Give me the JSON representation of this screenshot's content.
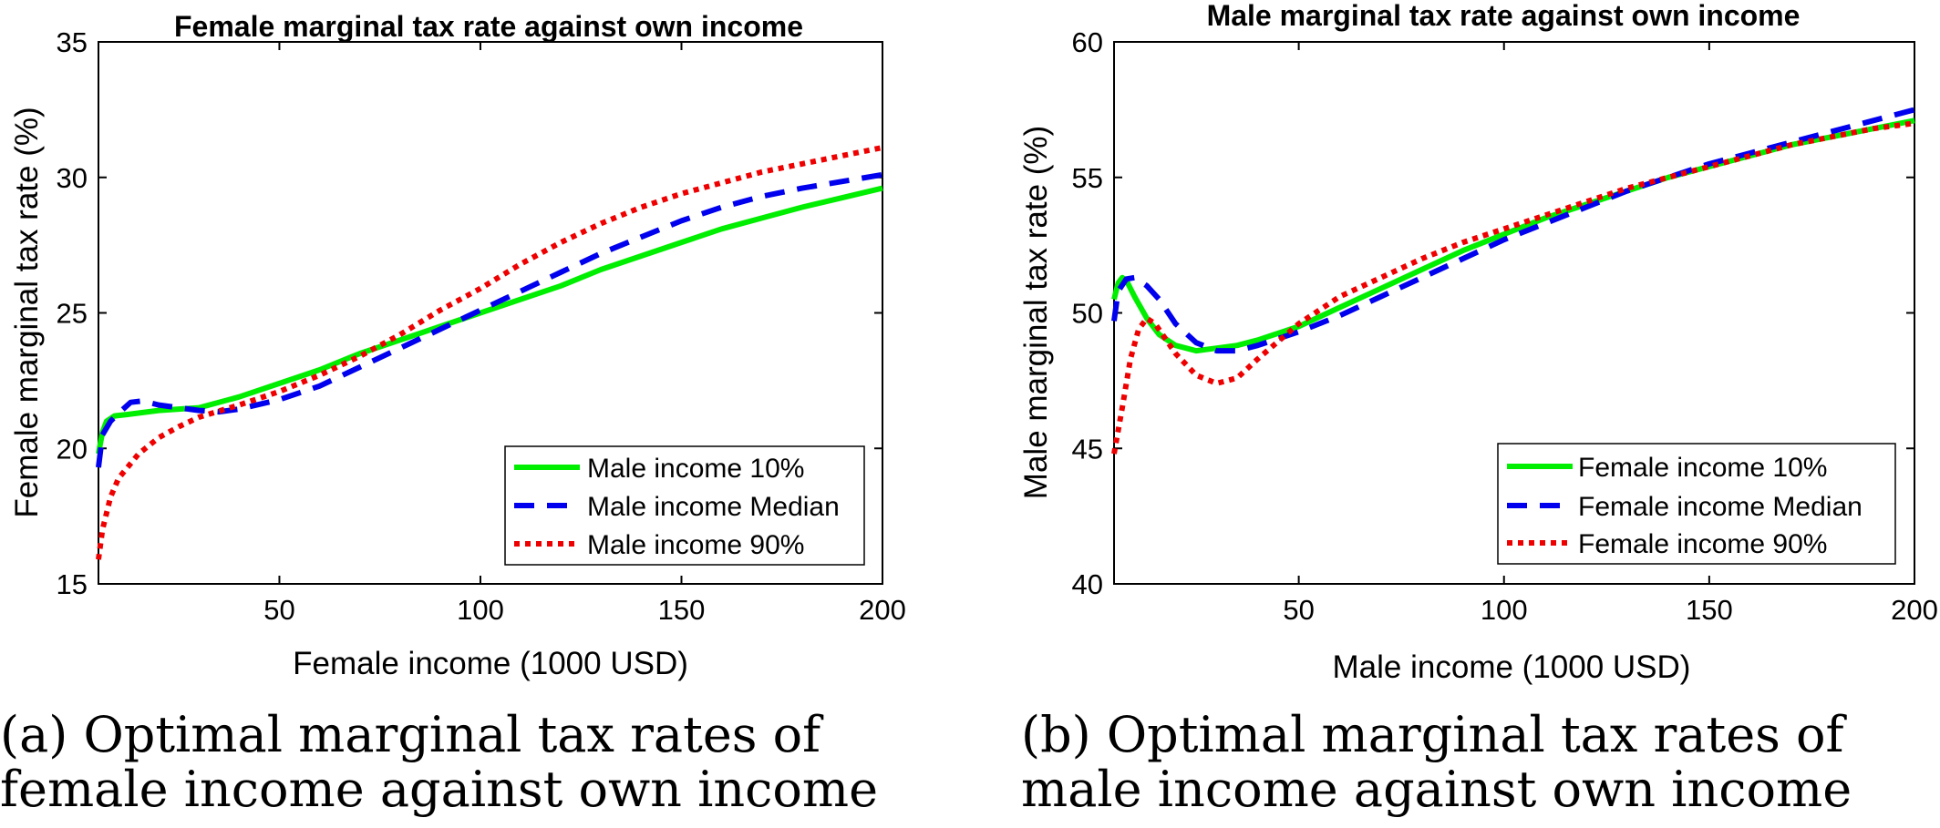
{
  "captions": {
    "a": "(a) Optimal marginal tax rates of\nfemale income against own income",
    "b": "(b) Optimal marginal tax rates of\nmale income against own income"
  },
  "chart_data": [
    {
      "type": "line",
      "title": "Female marginal tax rate against own income",
      "xlabel": "Female income (1000 USD)",
      "ylabel": "Female marginal tax rate (%)",
      "xlim": [
        5,
        200
      ],
      "ylim": [
        15,
        35
      ],
      "xticks": [
        50,
        100,
        150,
        200
      ],
      "yticks": [
        15,
        20,
        25,
        30,
        35
      ],
      "grid": false,
      "legend_position": "bottom-right",
      "series": [
        {
          "name": "Male income 10%",
          "color": "#00ee00",
          "style": "solid",
          "points": [
            [
              5,
              19.8
            ],
            [
              6,
              20.6
            ],
            [
              7,
              21.0
            ],
            [
              9,
              21.2
            ],
            [
              12,
              21.25
            ],
            [
              20,
              21.4
            ],
            [
              25,
              21.45
            ],
            [
              30,
              21.5
            ],
            [
              40,
              21.9
            ],
            [
              50,
              22.4
            ],
            [
              60,
              22.9
            ],
            [
              70,
              23.5
            ],
            [
              80,
              24.0
            ],
            [
              90,
              24.5
            ],
            [
              100,
              25.0
            ],
            [
              110,
              25.5
            ],
            [
              120,
              26.0
            ],
            [
              130,
              26.6
            ],
            [
              140,
              27.1
            ],
            [
              150,
              27.6
            ],
            [
              160,
              28.1
            ],
            [
              170,
              28.5
            ],
            [
              180,
              28.9
            ],
            [
              190,
              29.25
            ],
            [
              200,
              29.6
            ]
          ]
        },
        {
          "name": "Male income Median",
          "color": "#0000ee",
          "style": "dashed",
          "points": [
            [
              5,
              19.3
            ],
            [
              6,
              20.5
            ],
            [
              8,
              21.0
            ],
            [
              10,
              21.3
            ],
            [
              13,
              21.7
            ],
            [
              16,
              21.75
            ],
            [
              20,
              21.6
            ],
            [
              25,
              21.5
            ],
            [
              30,
              21.4
            ],
            [
              35,
              21.35
            ],
            [
              40,
              21.45
            ],
            [
              50,
              21.8
            ],
            [
              60,
              22.3
            ],
            [
              70,
              23.0
            ],
            [
              80,
              23.7
            ],
            [
              90,
              24.4
            ],
            [
              100,
              25.1
            ],
            [
              110,
              25.8
            ],
            [
              120,
              26.5
            ],
            [
              130,
              27.2
            ],
            [
              140,
              27.8
            ],
            [
              150,
              28.4
            ],
            [
              160,
              28.9
            ],
            [
              170,
              29.3
            ],
            [
              180,
              29.6
            ],
            [
              190,
              29.85
            ],
            [
              200,
              30.1
            ]
          ]
        },
        {
          "name": "Male income 90%",
          "color": "#ee0000",
          "style": "dotted",
          "points": [
            [
              5,
              15.9
            ],
            [
              6,
              17.0
            ],
            [
              8,
              18.2
            ],
            [
              10,
              18.9
            ],
            [
              15,
              19.8
            ],
            [
              20,
              20.4
            ],
            [
              25,
              20.8
            ],
            [
              30,
              21.15
            ],
            [
              40,
              21.6
            ],
            [
              50,
              22.1
            ],
            [
              60,
              22.7
            ],
            [
              70,
              23.4
            ],
            [
              80,
              24.2
            ],
            [
              90,
              25.1
            ],
            [
              100,
              25.9
            ],
            [
              110,
              26.8
            ],
            [
              120,
              27.6
            ],
            [
              130,
              28.3
            ],
            [
              140,
              28.9
            ],
            [
              150,
              29.4
            ],
            [
              160,
              29.8
            ],
            [
              170,
              30.2
            ],
            [
              180,
              30.5
            ],
            [
              190,
              30.8
            ],
            [
              200,
              31.1
            ]
          ]
        }
      ],
      "legend": [
        "Male income 10%",
        "Male income Median",
        "Male income 90%"
      ]
    },
    {
      "type": "line",
      "title": "Male marginal tax rate against own income",
      "xlabel": "Male income (1000 USD)",
      "ylabel": "Male marginal tax rate (%)",
      "xlim": [
        5,
        200
      ],
      "ylim": [
        40,
        60
      ],
      "xticks": [
        50,
        100,
        150,
        200
      ],
      "yticks": [
        40,
        45,
        50,
        55,
        60
      ],
      "grid": false,
      "legend_position": "bottom-right",
      "series": [
        {
          "name": "Female income 10%",
          "color": "#00ee00",
          "style": "solid",
          "points": [
            [
              5,
              50.5
            ],
            [
              6,
              51.1
            ],
            [
              7,
              51.3
            ],
            [
              8,
              51.2
            ],
            [
              10,
              50.6
            ],
            [
              13,
              49.8
            ],
            [
              16,
              49.2
            ],
            [
              20,
              48.8
            ],
            [
              25,
              48.6
            ],
            [
              30,
              48.7
            ],
            [
              35,
              48.8
            ],
            [
              40,
              49.0
            ],
            [
              50,
              49.5
            ],
            [
              60,
              50.2
            ],
            [
              70,
              50.9
            ],
            [
              80,
              51.6
            ],
            [
              90,
              52.3
            ],
            [
              100,
              52.9
            ],
            [
              110,
              53.5
            ],
            [
              120,
              54.0
            ],
            [
              130,
              54.5
            ],
            [
              140,
              55.0
            ],
            [
              150,
              55.4
            ],
            [
              160,
              55.8
            ],
            [
              170,
              56.2
            ],
            [
              180,
              56.5
            ],
            [
              190,
              56.8
            ],
            [
              200,
              57.1
            ]
          ]
        },
        {
          "name": "Female income Median",
          "color": "#0000ee",
          "style": "dashed",
          "points": [
            [
              5,
              49.7
            ],
            [
              6,
              50.8
            ],
            [
              8,
              51.25
            ],
            [
              10,
              51.3
            ],
            [
              13,
              51.0
            ],
            [
              16,
              50.5
            ],
            [
              20,
              49.6
            ],
            [
              25,
              48.9
            ],
            [
              30,
              48.6
            ],
            [
              35,
              48.6
            ],
            [
              40,
              48.8
            ],
            [
              50,
              49.3
            ],
            [
              60,
              49.9
            ],
            [
              70,
              50.6
            ],
            [
              80,
              51.3
            ],
            [
              90,
              52.0
            ],
            [
              100,
              52.7
            ],
            [
              110,
              53.3
            ],
            [
              120,
              53.9
            ],
            [
              130,
              54.5
            ],
            [
              140,
              55.0
            ],
            [
              150,
              55.5
            ],
            [
              160,
              55.9
            ],
            [
              170,
              56.3
            ],
            [
              180,
              56.7
            ],
            [
              190,
              57.1
            ],
            [
              200,
              57.5
            ]
          ]
        },
        {
          "name": "Female income 90%",
          "color": "#ee0000",
          "style": "dotted",
          "points": [
            [
              5,
              44.8
            ],
            [
              7,
              46.5
            ],
            [
              9,
              48.3
            ],
            [
              11,
              49.4
            ],
            [
              13,
              49.8
            ],
            [
              15,
              49.6
            ],
            [
              20,
              48.5
            ],
            [
              25,
              47.7
            ],
            [
              30,
              47.4
            ],
            [
              35,
              47.6
            ],
            [
              40,
              48.3
            ],
            [
              50,
              49.6
            ],
            [
              60,
              50.6
            ],
            [
              70,
              51.3
            ],
            [
              80,
              52.0
            ],
            [
              90,
              52.6
            ],
            [
              100,
              53.1
            ],
            [
              110,
              53.6
            ],
            [
              120,
              54.1
            ],
            [
              130,
              54.6
            ],
            [
              140,
              55.0
            ],
            [
              150,
              55.4
            ],
            [
              160,
              55.8
            ],
            [
              170,
              56.2
            ],
            [
              180,
              56.5
            ],
            [
              190,
              56.8
            ],
            [
              200,
              57.0
            ]
          ]
        }
      ],
      "legend": [
        "Female income 10%",
        "Female income Median",
        "Female income 90%"
      ]
    }
  ]
}
